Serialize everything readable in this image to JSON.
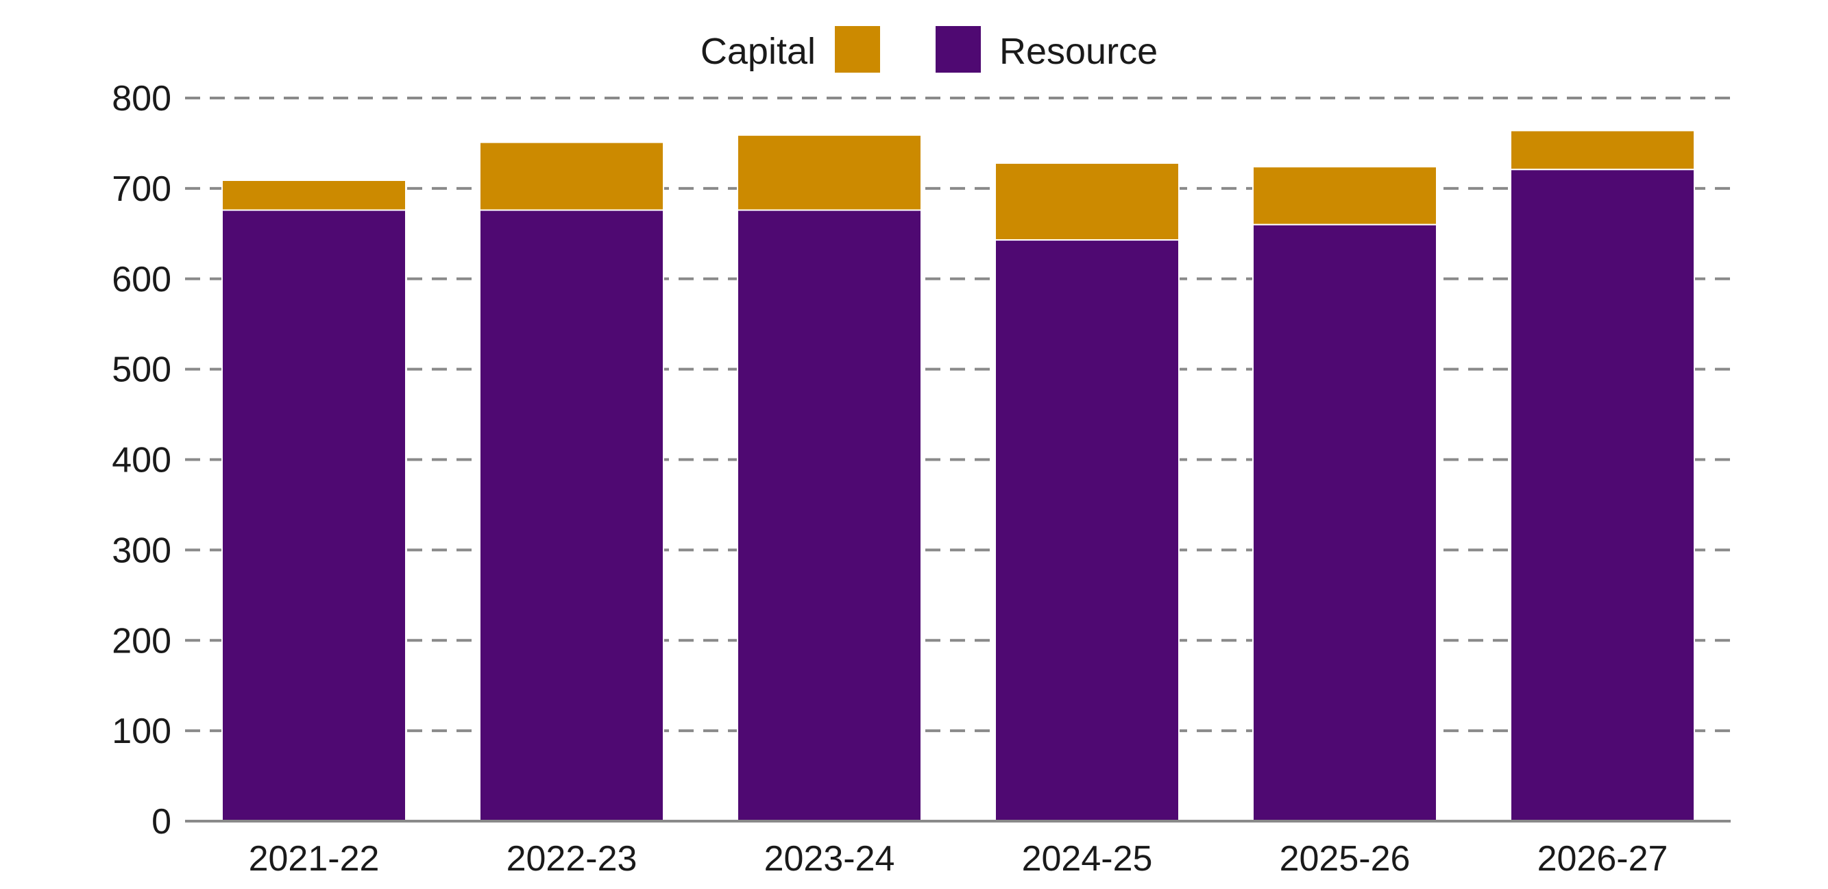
{
  "chart_data": {
    "type": "bar",
    "stacked": true,
    "categories": [
      "2021-22",
      "2022-23",
      "2023-24",
      "2024-25",
      "2025-26",
      "2026-27"
    ],
    "series": [
      {
        "name": "Resource",
        "color": "#4f0972",
        "values": [
          676,
          676,
          676,
          643,
          660,
          721
        ]
      },
      {
        "name": "Capital",
        "color": "#cc8a00",
        "values": [
          33,
          75,
          83,
          85,
          64,
          43
        ]
      }
    ],
    "legend": {
      "placement": "top-center",
      "items": [
        {
          "name": "Capital",
          "color": "#cc8a00"
        },
        {
          "name": "Resource",
          "color": "#4f0972"
        }
      ]
    },
    "yticks": [
      0,
      100,
      200,
      300,
      400,
      500,
      600,
      700,
      800
    ],
    "ylim": [
      0,
      800
    ],
    "grid": "horizontal-dashed",
    "title": "",
    "xlabel": "",
    "ylabel": ""
  }
}
